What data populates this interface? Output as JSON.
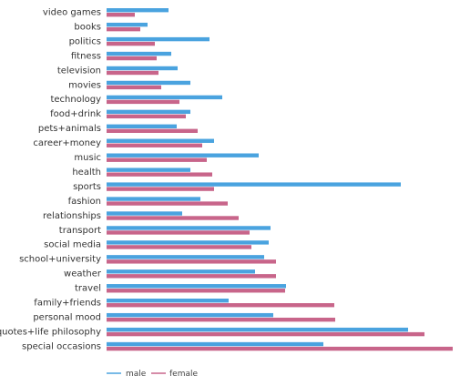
{
  "chart_data": {
    "type": "bar",
    "orientation": "horizontal",
    "categories": [
      "video games",
      "books",
      "politics",
      "fitness",
      "television",
      "movies",
      "technology",
      "food+drink",
      "pets+animals",
      "career+money",
      "music",
      "health",
      "sports",
      "fashion",
      "relationships",
      "transport",
      "social media",
      "school+university",
      "weather",
      "travel",
      "family+friends",
      "personal mood",
      "quotes+life philosophy",
      "special occasions"
    ],
    "series": [
      {
        "name": "male",
        "color": "#4aa3df",
        "values": [
          68,
          45,
          113,
          71,
          78,
          92,
          127,
          92,
          77,
          118,
          167,
          92,
          323,
          103,
          83,
          180,
          178,
          173,
          163,
          197,
          134,
          183,
          331,
          238
        ]
      },
      {
        "name": "female",
        "color": "#c8658a",
        "values": [
          31,
          37,
          53,
          55,
          57,
          60,
          80,
          87,
          100,
          105,
          110,
          116,
          118,
          133,
          145,
          157,
          159,
          186,
          186,
          196,
          250,
          251,
          349,
          380
        ]
      }
    ],
    "xlim": [
      0,
      380
    ],
    "grid": false,
    "legend_position": "bottom-left"
  },
  "legend": {
    "male_label": "male",
    "female_label": "female"
  }
}
